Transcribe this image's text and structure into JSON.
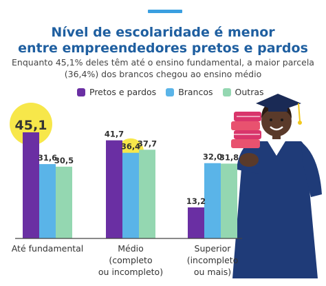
{
  "header": {
    "title_line1": "Nível de escolaridade é menor",
    "title_line2": "entre empreendedores pretos e pardos",
    "subtitle_line1": "Enquanto 45,1% deles têm até o ensino fundamental, a maior parcela",
    "subtitle_line2": "(36,4%) dos brancos chegou ao ensino médio"
  },
  "colors": {
    "pretos": "#6a2fa3",
    "brancos": "#5ab4e8",
    "outras": "#94d7b1",
    "highlight": "#f7e74a",
    "title": "#1f5fa0",
    "accent": "#3a9fe0"
  },
  "chart_data": {
    "type": "bar",
    "title": "Nível de escolaridade é menor entre empreendedores pretos e pardos",
    "legend_position": "top",
    "grid": false,
    "ylim": [
      0,
      50
    ],
    "categories": [
      [
        "Até fundamental"
      ],
      [
        "Médio",
        "(completo",
        "ou incompleto)"
      ],
      [
        "Superior",
        "(incompleto",
        "ou mais)"
      ]
    ],
    "series": [
      {
        "name": "Pretos e pardos",
        "values": [
          45.1,
          41.7,
          13.2
        ],
        "labels": [
          "45,1",
          "41,7",
          "13,2"
        ],
        "color": "#6a2fa3"
      },
      {
        "name": "Brancos",
        "values": [
          31.6,
          36.4,
          32.0
        ],
        "labels": [
          "31,6",
          "36,4",
          "32,0"
        ],
        "color": "#5ab4e8"
      },
      {
        "name": "Outras",
        "values": [
          30.5,
          37.7,
          31.8
        ],
        "labels": [
          "30,5",
          "37,7",
          "31,8"
        ],
        "color": "#94d7b1"
      }
    ],
    "highlighted": [
      {
        "series": 0,
        "category": 0
      },
      {
        "series": 1,
        "category": 1
      }
    ]
  }
}
